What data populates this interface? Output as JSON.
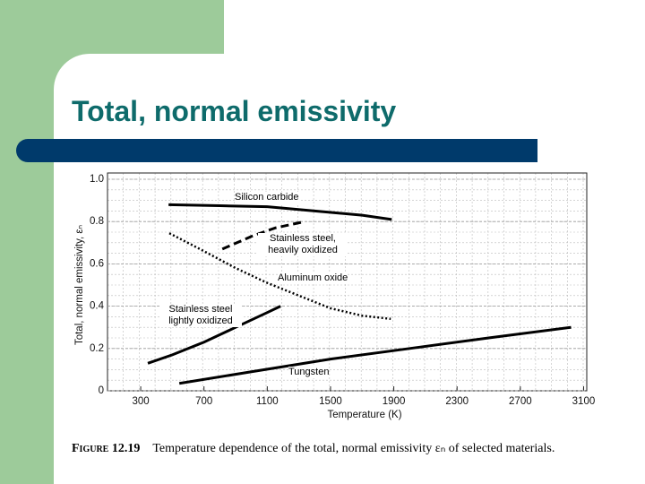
{
  "slide_title": "Total, normal emissivity",
  "caption": {
    "label": "Figure 12.19",
    "text": "Temperature dependence of the total, normal emissivity εₙ of selected materials."
  },
  "chart_data": {
    "type": "line",
    "x_label": "Temperature (K)",
    "y_label": "Total, normal emissivity, εₙ",
    "xlim": [
      90,
      3120
    ],
    "ylim": [
      0,
      1
    ],
    "xticks": [
      300,
      700,
      1100,
      1500,
      1900,
      2300,
      2700,
      3100
    ],
    "yticks": [
      0,
      0.2,
      0.4,
      0.6,
      0.8,
      {
        "value": 1,
        "label": "1.0"
      }
    ],
    "grid": true,
    "color": "#000000",
    "series": [
      {
        "name": "Silicon carbide",
        "style": "solid",
        "x": [
          476,
          800,
          1100,
          1400,
          1700,
          1887
        ],
        "values": [
          0.88,
          0.875,
          0.87,
          0.85,
          0.83,
          0.81
        ]
      },
      {
        "name": "Stainless steel, heavily oxidized",
        "style": "dashed",
        "x": [
          816,
          1000,
          1150,
          1337
        ],
        "values": [
          0.67,
          0.73,
          0.77,
          0.8
        ]
      },
      {
        "name": "Aluminum oxide",
        "style": "dotted",
        "x": [
          481,
          700,
          900,
          1100,
          1300,
          1500,
          1700,
          1881
        ],
        "values": [
          0.745,
          0.66,
          0.58,
          0.51,
          0.45,
          0.39,
          0.355,
          0.34
        ]
      },
      {
        "name": "Stainless steel lightly oxidized",
        "style": "solid",
        "x": [
          345,
          500,
          700,
          900,
          1100,
          1184
        ],
        "values": [
          0.13,
          0.17,
          0.23,
          0.3,
          0.37,
          0.4
        ]
      },
      {
        "name": "Tungsten",
        "style": "solid",
        "x": [
          544,
          1000,
          1500,
          2000,
          2500,
          3021
        ],
        "values": [
          0.035,
          0.09,
          0.15,
          0.2,
          0.25,
          0.3
        ]
      }
    ]
  }
}
